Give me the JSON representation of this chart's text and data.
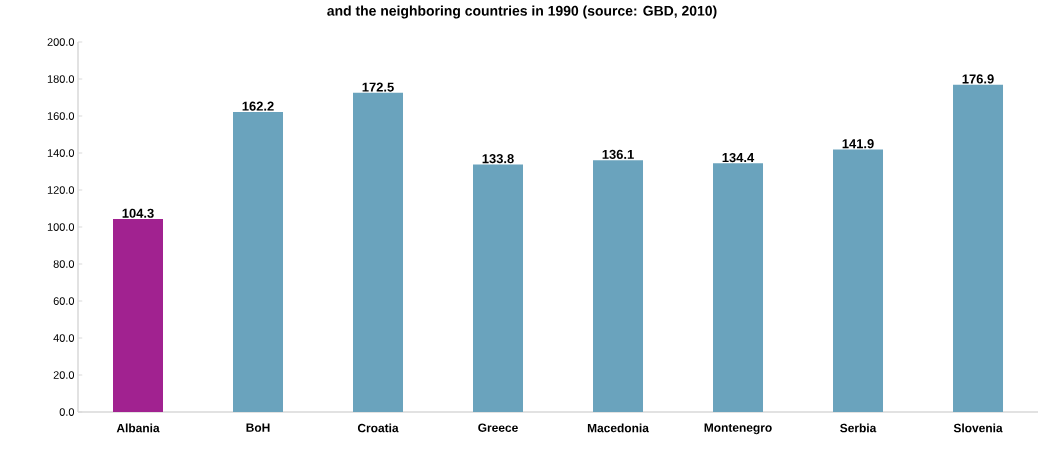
{
  "chart_data": {
    "type": "bar",
    "title": "and the neighboring countries in 1990 (source: GBD, 2010)",
    "categories": [
      "Albania",
      "BoH",
      "Croatia",
      "Greece",
      "Macedonia",
      "Montenegro",
      "Serbia",
      "Slovenia"
    ],
    "values": [
      104.3,
      162.2,
      172.5,
      133.8,
      136.1,
      134.4,
      141.9,
      176.9
    ],
    "colors": [
      "#a12290",
      "#6aa3bd",
      "#6aa3bd",
      "#6aa3bd",
      "#6aa3bd",
      "#6aa3bd",
      "#6aa3bd",
      "#6aa3bd"
    ],
    "ylim": [
      0,
      200
    ],
    "yticks": [
      {
        "value": 0,
        "label": "0.0"
      },
      {
        "value": 20,
        "label": "20.0"
      },
      {
        "value": 40,
        "label": "40.0"
      },
      {
        "value": 60,
        "label": "60.0"
      },
      {
        "value": 80,
        "label": "80.0"
      },
      {
        "value": 100,
        "label": "100.0"
      },
      {
        "value": 120,
        "label": "120.0"
      },
      {
        "value": 140,
        "label": "140.0"
      },
      {
        "value": 160,
        "label": "160.0"
      },
      {
        "value": 180,
        "label": "180.0"
      },
      {
        "value": 200,
        "label": "200.0"
      }
    ],
    "data_labels": true
  }
}
